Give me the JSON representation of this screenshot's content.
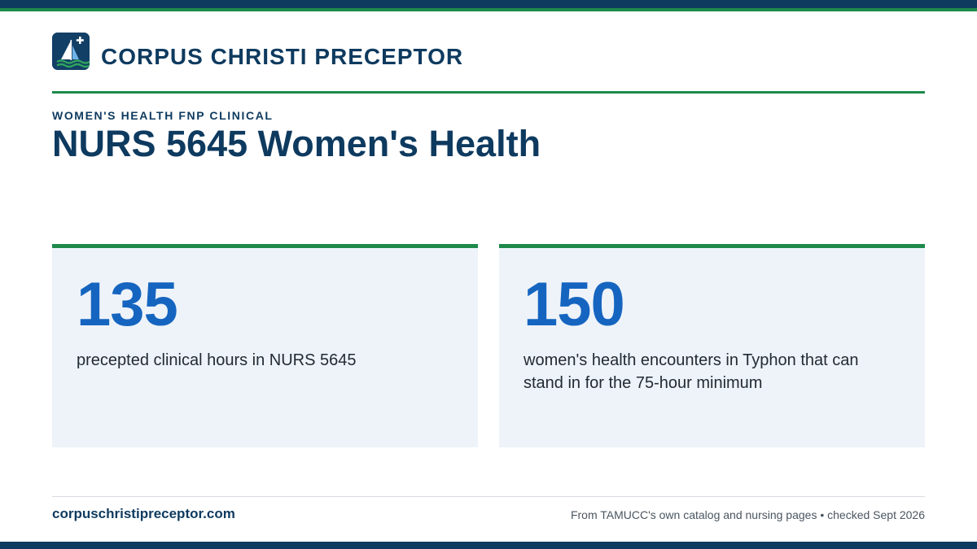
{
  "brand": {
    "name": "CORPUS CHRISTI PRECEPTOR",
    "logo_icon": "sailboat-medical-cross-icon"
  },
  "header": {
    "eyebrow": "WOMEN'S HEALTH FNP CLINICAL",
    "title": "NURS 5645 Women's Health"
  },
  "stats": [
    {
      "number": "135",
      "description": "precepted clinical hours in NURS 5645"
    },
    {
      "number": "150",
      "description": "women's health encounters in Typhon that can stand in for the 75-hour minimum"
    }
  ],
  "footer": {
    "site": "corpuschristipreceptor.com",
    "source": "From TAMUCC's own catalog and nursing pages • checked Sept 2026"
  },
  "colors": {
    "navy": "#0e3a5f",
    "green": "#1e8a4c",
    "accent_blue": "#1565c0",
    "card_bg": "#eef3f9"
  }
}
